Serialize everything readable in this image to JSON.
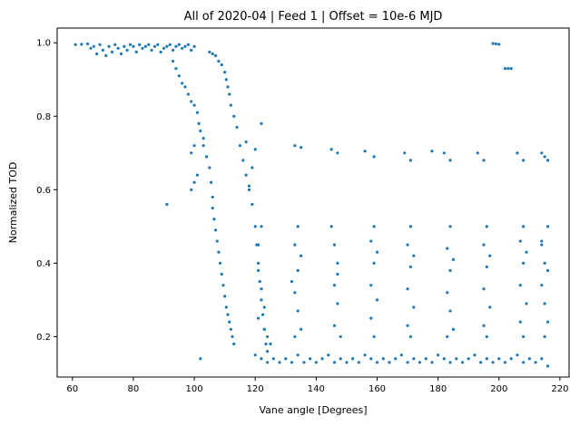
{
  "chart_data": {
    "type": "scatter",
    "title": "All of 2020-04 | Feed 1 | Offset = 10e-6 MJD",
    "xlabel": "Vane angle [Degrees]",
    "ylabel": "Normalized TOD",
    "xlim": [
      55,
      223
    ],
    "ylim": [
      0.09,
      1.04
    ],
    "xticks": [
      60,
      80,
      100,
      120,
      140,
      160,
      180,
      200,
      220
    ],
    "yticks": [
      0.2,
      0.4,
      0.6,
      0.8,
      1.0
    ],
    "xtick_labels": [
      "60",
      "80",
      "100",
      "120",
      "140",
      "160",
      "180",
      "200",
      "220"
    ],
    "ytick_labels": [
      "0.2",
      "0.4",
      "0.6",
      "0.8",
      "1.0"
    ],
    "grid": false,
    "legend": "none",
    "marker_color": "#1f77b4",
    "series": [
      {
        "points": [
          [
            61,
            0.995
          ],
          [
            63,
            0.996
          ],
          [
            65,
            0.997
          ],
          [
            66,
            0.985
          ],
          [
            67,
            0.99
          ],
          [
            68,
            0.97
          ],
          [
            69,
            0.995
          ],
          [
            70,
            0.98
          ],
          [
            71,
            0.965
          ],
          [
            72,
            0.99
          ],
          [
            73,
            0.975
          ],
          [
            74,
            0.995
          ],
          [
            75,
            0.985
          ],
          [
            76,
            0.97
          ],
          [
            77,
            0.99
          ],
          [
            78,
            0.98
          ],
          [
            79,
            0.995
          ],
          [
            80,
            0.99
          ],
          [
            81,
            0.975
          ],
          [
            82,
            0.995
          ],
          [
            83,
            0.985
          ],
          [
            84,
            0.99
          ],
          [
            85,
            0.995
          ],
          [
            86,
            0.98
          ],
          [
            87,
            0.99
          ],
          [
            88,
            0.995
          ],
          [
            89,
            0.975
          ],
          [
            90,
            0.985
          ],
          [
            91,
            0.99
          ],
          [
            92,
            0.995
          ],
          [
            93,
            0.98
          ],
          [
            94,
            0.99
          ],
          [
            95,
            0.995
          ],
          [
            96,
            0.985
          ],
          [
            97,
            0.99
          ],
          [
            98,
            0.995
          ],
          [
            99,
            0.98
          ],
          [
            100,
            0.99
          ],
          [
            93,
            0.95
          ],
          [
            94,
            0.93
          ],
          [
            95,
            0.91
          ],
          [
            96,
            0.89
          ],
          [
            97,
            0.88
          ],
          [
            98,
            0.86
          ],
          [
            99,
            0.84
          ],
          [
            100,
            0.83
          ],
          [
            101,
            0.81
          ],
          [
            101.5,
            0.78
          ],
          [
            102,
            0.76
          ],
          [
            103,
            0.72
          ],
          [
            104,
            0.69
          ],
          [
            105,
            0.66
          ],
          [
            105.5,
            0.62
          ],
          [
            106,
            0.58
          ],
          [
            106,
            0.55
          ],
          [
            106.5,
            0.52
          ],
          [
            107,
            0.49
          ],
          [
            107.5,
            0.46
          ],
          [
            108,
            0.43
          ],
          [
            108.5,
            0.4
          ],
          [
            109,
            0.37
          ],
          [
            109.5,
            0.34
          ],
          [
            110,
            0.31
          ],
          [
            110.5,
            0.28
          ],
          [
            111,
            0.26
          ],
          [
            111.5,
            0.24
          ],
          [
            112,
            0.22
          ],
          [
            112.5,
            0.2
          ],
          [
            113,
            0.18
          ],
          [
            105,
            0.975
          ],
          [
            106,
            0.97
          ],
          [
            107,
            0.965
          ],
          [
            108,
            0.95
          ],
          [
            109,
            0.94
          ],
          [
            110,
            0.92
          ],
          [
            110.5,
            0.9
          ],
          [
            111,
            0.88
          ],
          [
            111.5,
            0.86
          ],
          [
            112,
            0.83
          ],
          [
            113,
            0.8
          ],
          [
            114,
            0.77
          ],
          [
            115,
            0.72
          ],
          [
            116,
            0.68
          ],
          [
            117,
            0.64
          ],
          [
            118,
            0.6
          ],
          [
            119,
            0.56
          ],
          [
            120,
            0.5
          ],
          [
            120.5,
            0.45
          ],
          [
            121,
            0.4
          ],
          [
            121.5,
            0.35
          ],
          [
            122,
            0.3
          ],
          [
            122.5,
            0.26
          ],
          [
            123,
            0.22
          ],
          [
            123.5,
            0.18
          ],
          [
            124,
            0.16
          ],
          [
            99,
            0.6
          ],
          [
            100,
            0.62
          ],
          [
            101,
            0.64
          ],
          [
            99,
            0.7
          ],
          [
            100,
            0.72
          ],
          [
            103,
            0.74
          ],
          [
            91,
            0.56
          ],
          [
            102,
            0.14
          ],
          [
            117,
            0.73
          ],
          [
            120,
            0.71
          ],
          [
            122,
            0.78
          ],
          [
            118,
            0.61
          ],
          [
            119,
            0.66
          ],
          [
            120,
            0.15
          ],
          [
            122,
            0.14
          ],
          [
            124,
            0.13
          ],
          [
            126,
            0.14
          ],
          [
            128,
            0.13
          ],
          [
            130,
            0.14
          ],
          [
            132,
            0.13
          ],
          [
            134,
            0.15
          ],
          [
            136,
            0.13
          ],
          [
            138,
            0.14
          ],
          [
            140,
            0.13
          ],
          [
            142,
            0.14
          ],
          [
            144,
            0.15
          ],
          [
            146,
            0.13
          ],
          [
            148,
            0.14
          ],
          [
            150,
            0.13
          ],
          [
            152,
            0.14
          ],
          [
            154,
            0.13
          ],
          [
            156,
            0.15
          ],
          [
            158,
            0.14
          ],
          [
            160,
            0.13
          ],
          [
            162,
            0.14
          ],
          [
            164,
            0.13
          ],
          [
            166,
            0.14
          ],
          [
            168,
            0.15
          ],
          [
            170,
            0.13
          ],
          [
            172,
            0.14
          ],
          [
            174,
            0.13
          ],
          [
            176,
            0.14
          ],
          [
            178,
            0.13
          ],
          [
            180,
            0.15
          ],
          [
            182,
            0.14
          ],
          [
            184,
            0.13
          ],
          [
            186,
            0.14
          ],
          [
            188,
            0.13
          ],
          [
            190,
            0.14
          ],
          [
            192,
            0.15
          ],
          [
            194,
            0.13
          ],
          [
            196,
            0.14
          ],
          [
            198,
            0.13
          ],
          [
            200,
            0.14
          ],
          [
            202,
            0.13
          ],
          [
            204,
            0.14
          ],
          [
            206,
            0.15
          ],
          [
            208,
            0.13
          ],
          [
            210,
            0.14
          ],
          [
            212,
            0.13
          ],
          [
            214,
            0.14
          ],
          [
            216,
            0.12
          ],
          [
            121,
            0.45
          ],
          [
            121,
            0.38
          ],
          [
            122,
            0.33
          ],
          [
            123,
            0.28
          ],
          [
            121,
            0.25
          ],
          [
            123,
            0.22
          ],
          [
            122,
            0.5
          ],
          [
            124,
            0.2
          ],
          [
            125,
            0.18
          ],
          [
            133,
            0.45
          ],
          [
            134,
            0.38
          ],
          [
            133,
            0.32
          ],
          [
            134,
            0.27
          ],
          [
            135,
            0.22
          ],
          [
            133,
            0.2
          ],
          [
            134,
            0.5
          ],
          [
            135,
            0.42
          ],
          [
            132,
            0.35
          ],
          [
            146,
            0.45
          ],
          [
            147,
            0.4
          ],
          [
            146,
            0.34
          ],
          [
            147,
            0.29
          ],
          [
            146,
            0.23
          ],
          [
            148,
            0.2
          ],
          [
            145,
            0.5
          ],
          [
            147,
            0.37
          ],
          [
            158,
            0.46
          ],
          [
            159,
            0.4
          ],
          [
            158,
            0.34
          ],
          [
            160,
            0.3
          ],
          [
            158,
            0.25
          ],
          [
            159,
            0.2
          ],
          [
            159,
            0.5
          ],
          [
            160,
            0.43
          ],
          [
            170,
            0.45
          ],
          [
            171,
            0.39
          ],
          [
            170,
            0.33
          ],
          [
            172,
            0.28
          ],
          [
            170,
            0.23
          ],
          [
            171,
            0.2
          ],
          [
            171,
            0.5
          ],
          [
            172,
            0.42
          ],
          [
            183,
            0.44
          ],
          [
            184,
            0.38
          ],
          [
            183,
            0.32
          ],
          [
            184,
            0.27
          ],
          [
            185,
            0.22
          ],
          [
            183,
            0.2
          ],
          [
            184,
            0.5
          ],
          [
            185,
            0.41
          ],
          [
            195,
            0.45
          ],
          [
            196,
            0.39
          ],
          [
            195,
            0.33
          ],
          [
            197,
            0.28
          ],
          [
            195,
            0.23
          ],
          [
            196,
            0.2
          ],
          [
            196,
            0.5
          ],
          [
            197,
            0.42
          ],
          [
            207,
            0.46
          ],
          [
            208,
            0.4
          ],
          [
            207,
            0.34
          ],
          [
            209,
            0.29
          ],
          [
            207,
            0.24
          ],
          [
            208,
            0.2
          ],
          [
            208,
            0.5
          ],
          [
            209,
            0.43
          ],
          [
            214,
            0.46
          ],
          [
            215,
            0.4
          ],
          [
            214,
            0.34
          ],
          [
            215,
            0.29
          ],
          [
            216,
            0.24
          ],
          [
            215,
            0.2
          ],
          [
            216,
            0.5
          ],
          [
            214,
            0.45
          ],
          [
            216,
            0.38
          ],
          [
            133,
            0.72
          ],
          [
            135,
            0.715
          ],
          [
            145,
            0.71
          ],
          [
            147,
            0.7
          ],
          [
            156,
            0.705
          ],
          [
            159,
            0.69
          ],
          [
            169,
            0.7
          ],
          [
            171,
            0.68
          ],
          [
            178,
            0.705
          ],
          [
            182,
            0.7
          ],
          [
            184,
            0.68
          ],
          [
            193,
            0.7
          ],
          [
            195,
            0.68
          ],
          [
            206,
            0.7
          ],
          [
            208,
            0.68
          ],
          [
            214,
            0.7
          ],
          [
            215,
            0.69
          ],
          [
            216,
            0.68
          ],
          [
            198,
            0.998
          ],
          [
            199,
            0.997
          ],
          [
            200,
            0.996
          ],
          [
            202,
            0.93
          ],
          [
            203,
            0.93
          ],
          [
            204,
            0.93
          ]
        ]
      }
    ]
  }
}
